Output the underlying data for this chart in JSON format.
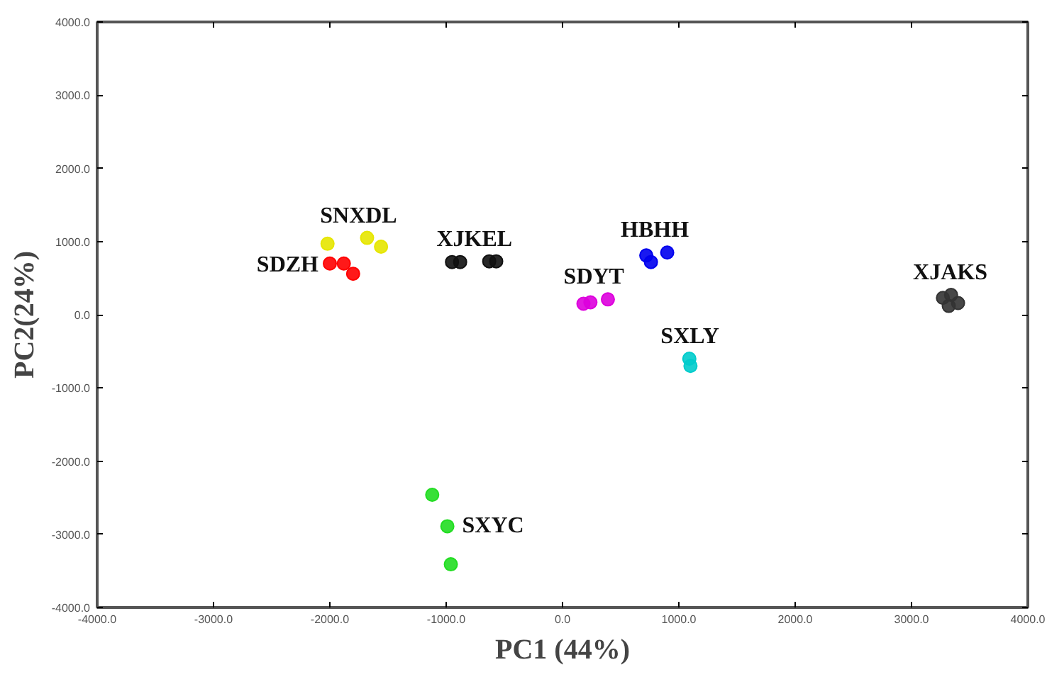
{
  "chart_data": {
    "type": "scatter",
    "xlabel": "PC1 (44%)",
    "ylabel": "PC2(24%)",
    "xlim": [
      -4000,
      4000
    ],
    "ylim": [
      -4000,
      4000
    ],
    "xticks": [
      {
        "value": -4000,
        "label": "-4000.0"
      },
      {
        "value": -3000,
        "label": "-3000.0"
      },
      {
        "value": -2000,
        "label": "-2000.0"
      },
      {
        "value": -1000,
        "label": "-1000.0"
      },
      {
        "value": 0,
        "label": "0.0"
      },
      {
        "value": 1000,
        "label": "1000.0"
      },
      {
        "value": 2000,
        "label": "2000.0"
      },
      {
        "value": 3000,
        "label": "3000.0"
      },
      {
        "value": 4000,
        "label": "4000.0"
      }
    ],
    "yticks": [
      {
        "value": -4000,
        "label": "-4000.0"
      },
      {
        "value": -3000,
        "label": "-3000.0"
      },
      {
        "value": -2000,
        "label": "-2000.0"
      },
      {
        "value": -1000,
        "label": "-1000.0"
      },
      {
        "value": 0,
        "label": "0.0"
      },
      {
        "value": 1000,
        "label": "1000.0"
      },
      {
        "value": 2000,
        "label": "2000.0"
      },
      {
        "value": 3000,
        "label": "3000.0"
      },
      {
        "value": 4000,
        "label": "4000.0"
      }
    ],
    "marker": "circle",
    "grid": false,
    "series": [
      {
        "name": "SNXDL",
        "color": "#e6e600",
        "x": [
          -2020,
          -1680,
          -1560
        ],
        "values": [
          970,
          1050,
          930
        ]
      },
      {
        "name": "SDZH",
        "color": "#ff0000",
        "x": [
          -2000,
          -1880,
          -1800
        ],
        "values": [
          700,
          700,
          560
        ]
      },
      {
        "name": "XJKEL",
        "color": "#111111",
        "x": [
          -950,
          -880,
          -630,
          -570
        ],
        "values": [
          720,
          720,
          730,
          730
        ]
      },
      {
        "name": "HBHH",
        "color": "#0000ee",
        "x": [
          720,
          760,
          900
        ],
        "values": [
          810,
          720,
          850
        ]
      },
      {
        "name": "SDYT",
        "color": "#dd00dd",
        "x": [
          180,
          240,
          390
        ],
        "values": [
          150,
          170,
          210
        ]
      },
      {
        "name": "SXLY",
        "color": "#00cccc",
        "x": [
          1090,
          1100
        ],
        "values": [
          -600,
          -700
        ]
      },
      {
        "name": "XJAKS",
        "color": "#333333",
        "x": [
          3270,
          3340,
          3320,
          3400
        ],
        "values": [
          230,
          270,
          120,
          160
        ]
      },
      {
        "name": "SXYC",
        "color": "#22dd22",
        "x": [
          -1120,
          -990,
          -960
        ],
        "values": [
          -2460,
          -2890,
          -3410
        ]
      }
    ]
  }
}
